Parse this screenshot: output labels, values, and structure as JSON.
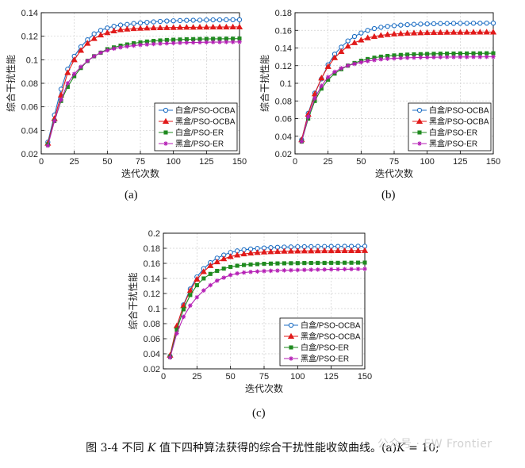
{
  "figure": {
    "caption_parts": [
      "图 3-4 不同 ",
      "K",
      " 值下四种算法获得的综合干扰性能收敛曲线。(a)",
      "K",
      " = 10;"
    ],
    "watermark": "公众号 · EW Frontier"
  },
  "colors": {
    "series": [
      "#1f6fc4",
      "#e11a1a",
      "#1f8a1f",
      "#b51fb5"
    ],
    "grid": "#cfcfcf",
    "axis": "#000000"
  },
  "chart_data": [
    {
      "type": "line",
      "panel_label": "(a)",
      "xlabel": "迭代次数",
      "ylabel": "综合干扰性能",
      "xlim": [
        0,
        150
      ],
      "ylim": [
        0.02,
        0.14
      ],
      "xticks": [
        0,
        25,
        50,
        75,
        100,
        125,
        150
      ],
      "yticks": [
        0.02,
        0.04,
        0.06,
        0.08,
        0.1,
        0.12,
        0.14
      ],
      "ytick_labels": [
        "0.02",
        "0.04",
        "0.06",
        "0.08",
        "0.1",
        "0.12",
        "0.14"
      ],
      "grid": true,
      "legend_position": "bottom-right",
      "x": [
        5,
        10,
        15,
        20,
        25,
        30,
        35,
        40,
        45,
        50,
        55,
        60,
        65,
        70,
        75,
        80,
        85,
        90,
        95,
        100,
        105,
        110,
        115,
        120,
        125,
        130,
        135,
        140,
        145,
        150
      ],
      "series": [
        {
          "name": "白盒/PSO-OCBA",
          "marker": "circle",
          "values": [
            0.03,
            0.053,
            0.075,
            0.092,
            0.103,
            0.111,
            0.117,
            0.122,
            0.125,
            0.127,
            0.1285,
            0.1295,
            0.13,
            0.1308,
            0.1313,
            0.1318,
            0.1322,
            0.1326,
            0.1329,
            0.1331,
            0.1333,
            0.1335,
            0.1336,
            0.1337,
            0.1338,
            0.1339,
            0.1339,
            0.134,
            0.134,
            0.134
          ]
        },
        {
          "name": "黑盒/PSO-OCBA",
          "marker": "triangle",
          "values": [
            0.029,
            0.05,
            0.07,
            0.089,
            0.1,
            0.108,
            0.114,
            0.118,
            0.121,
            0.123,
            0.1245,
            0.1255,
            0.126,
            0.1264,
            0.1267,
            0.1269,
            0.1271,
            0.1272,
            0.1273,
            0.1274,
            0.1275,
            0.1276,
            0.1276,
            0.1277,
            0.1277,
            0.1278,
            0.1278,
            0.1278,
            0.1279,
            0.1279
          ]
        },
        {
          "name": "白盒/PSO-ER",
          "marker": "square",
          "values": [
            0.028,
            0.048,
            0.065,
            0.077,
            0.086,
            0.093,
            0.099,
            0.103,
            0.106,
            0.109,
            0.1105,
            0.112,
            0.113,
            0.114,
            0.1148,
            0.1155,
            0.116,
            0.1164,
            0.1168,
            0.117,
            0.1172,
            0.1174,
            0.1175,
            0.1176,
            0.1177,
            0.1178,
            0.1178,
            0.1179,
            0.1179,
            0.118
          ]
        },
        {
          "name": "黑盒/PSO-ER",
          "marker": "star",
          "values": [
            0.027,
            0.048,
            0.066,
            0.08,
            0.088,
            0.094,
            0.099,
            0.103,
            0.106,
            0.108,
            0.1095,
            0.1105,
            0.1113,
            0.112,
            0.1126,
            0.113,
            0.1134,
            0.1137,
            0.114,
            0.1142,
            0.1144,
            0.1146,
            0.1147,
            0.1148,
            0.1149,
            0.115,
            0.115,
            0.1151,
            0.1151,
            0.1152
          ]
        }
      ]
    },
    {
      "type": "line",
      "panel_label": "(b)",
      "xlabel": "迭代次数",
      "ylabel": "综合干扰性能",
      "xlim": [
        0,
        150
      ],
      "ylim": [
        0.02,
        0.18
      ],
      "xticks": [
        0,
        25,
        50,
        75,
        100,
        125,
        150
      ],
      "yticks": [
        0.02,
        0.04,
        0.06,
        0.08,
        0.1,
        0.12,
        0.14,
        0.16,
        0.18
      ],
      "ytick_labels": [
        "0.02",
        "0.04",
        "0.06",
        "0.08",
        "0.1",
        "0.12",
        "0.14",
        "0.16",
        "0.18"
      ],
      "grid": true,
      "legend_position": "bottom-right",
      "x": [
        5,
        10,
        15,
        20,
        25,
        30,
        35,
        40,
        45,
        50,
        55,
        60,
        65,
        70,
        75,
        80,
        85,
        90,
        95,
        100,
        105,
        110,
        115,
        120,
        125,
        130,
        135,
        140,
        145,
        150
      ],
      "series": [
        {
          "name": "白盒/PSO-OCBA",
          "marker": "circle",
          "values": [
            0.036,
            0.066,
            0.089,
            0.105,
            0.121,
            0.133,
            0.141,
            0.148,
            0.153,
            0.157,
            0.16,
            0.162,
            0.1635,
            0.1645,
            0.1653,
            0.1659,
            0.1664,
            0.1668,
            0.1671,
            0.1673,
            0.1675,
            0.1677,
            0.1678,
            0.1679,
            0.168,
            0.168,
            0.1681,
            0.1681,
            0.1682,
            0.1682
          ]
        },
        {
          "name": "黑盒/PSO-OCBA",
          "marker": "triangle",
          "values": [
            0.036,
            0.065,
            0.088,
            0.106,
            0.119,
            0.129,
            0.136,
            0.142,
            0.146,
            0.149,
            0.1515,
            0.153,
            0.1543,
            0.1552,
            0.1558,
            0.1563,
            0.1567,
            0.157,
            0.1572,
            0.1574,
            0.1575,
            0.1576,
            0.1577,
            0.1578,
            0.1578,
            0.1579,
            0.1579,
            0.158,
            0.158,
            0.158
          ]
        },
        {
          "name": "白盒/PSO-ER",
          "marker": "square",
          "values": [
            0.034,
            0.06,
            0.08,
            0.094,
            0.104,
            0.111,
            0.116,
            0.12,
            0.123,
            0.1255,
            0.1275,
            0.129,
            0.1302,
            0.131,
            0.1316,
            0.1321,
            0.1325,
            0.1328,
            0.133,
            0.1332,
            0.1334,
            0.1335,
            0.1336,
            0.1337,
            0.1338,
            0.1338,
            0.1339,
            0.1339,
            0.134,
            0.134
          ]
        },
        {
          "name": "黑盒/PSO-ER",
          "marker": "star",
          "values": [
            0.034,
            0.062,
            0.083,
            0.097,
            0.107,
            0.113,
            0.117,
            0.12,
            0.122,
            0.1238,
            0.1252,
            0.1263,
            0.1272,
            0.1278,
            0.1283,
            0.1286,
            0.1289,
            0.1291,
            0.1293,
            0.1294,
            0.1295,
            0.1296,
            0.1297,
            0.1297,
            0.1298,
            0.1298,
            0.1299,
            0.1299,
            0.13,
            0.13
          ]
        }
      ]
    },
    {
      "type": "line",
      "panel_label": "(c)",
      "xlabel": "迭代次数",
      "ylabel": "综合干扰性能",
      "xlim": [
        0,
        150
      ],
      "ylim": [
        0.02,
        0.2
      ],
      "xticks": [
        0,
        25,
        50,
        75,
        100,
        125,
        150
      ],
      "yticks": [
        0.02,
        0.04,
        0.06,
        0.08,
        0.1,
        0.12,
        0.14,
        0.16,
        0.18,
        0.2
      ],
      "ytick_labels": [
        "0.02",
        "0.04",
        "0.06",
        "0.08",
        "0.1",
        "0.12",
        "0.14",
        "0.16",
        "0.18",
        "0.2"
      ],
      "grid": true,
      "legend_position": "bottom-right",
      "x": [
        5,
        10,
        15,
        20,
        25,
        30,
        35,
        40,
        45,
        50,
        55,
        60,
        65,
        70,
        75,
        80,
        85,
        90,
        95,
        100,
        105,
        110,
        115,
        120,
        125,
        130,
        135,
        140,
        145,
        150
      ],
      "series": [
        {
          "name": "白盒/PSO-OCBA",
          "marker": "circle",
          "values": [
            0.037,
            0.075,
            0.105,
            0.126,
            0.142,
            0.153,
            0.161,
            0.167,
            0.171,
            0.1745,
            0.1765,
            0.178,
            0.179,
            0.1798,
            0.1804,
            0.1809,
            0.1813,
            0.1816,
            0.1818,
            0.182,
            0.1821,
            0.1822,
            0.1823,
            0.1824,
            0.1825,
            0.1825,
            0.1826,
            0.1826,
            0.1827,
            0.1827
          ]
        },
        {
          "name": "黑盒/PSO-OCBA",
          "marker": "triangle",
          "values": [
            0.038,
            0.077,
            0.104,
            0.124,
            0.139,
            0.149,
            0.157,
            0.162,
            0.166,
            0.169,
            0.171,
            0.1725,
            0.1736,
            0.1744,
            0.175,
            0.1754,
            0.1757,
            0.176,
            0.1762,
            0.1763,
            0.1764,
            0.1765,
            0.1766,
            0.1767,
            0.1767,
            0.1768,
            0.1768,
            0.1769,
            0.1769,
            0.177
          ]
        },
        {
          "name": "白盒/PSO-ER",
          "marker": "square",
          "values": [
            0.036,
            0.072,
            0.099,
            0.118,
            0.131,
            0.14,
            0.146,
            0.15,
            0.153,
            0.1553,
            0.1568,
            0.1578,
            0.1585,
            0.159,
            0.1594,
            0.1597,
            0.1599,
            0.1601,
            0.1602,
            0.1603,
            0.1604,
            0.1605,
            0.1606,
            0.1606,
            0.1607,
            0.1607,
            0.1608,
            0.1608,
            0.1609,
            0.161
          ]
        },
        {
          "name": "黑盒/PSO-ER",
          "marker": "star",
          "values": [
            0.035,
            0.067,
            0.089,
            0.104,
            0.115,
            0.124,
            0.131,
            0.137,
            0.141,
            0.1445,
            0.1466,
            0.1478,
            0.1486,
            0.1492,
            0.1497,
            0.1501,
            0.1504,
            0.1507,
            0.1509,
            0.1511,
            0.1513,
            0.1515,
            0.1517,
            0.1518,
            0.152,
            0.1521,
            0.1522,
            0.1523,
            0.1525,
            0.1526
          ]
        }
      ]
    }
  ]
}
